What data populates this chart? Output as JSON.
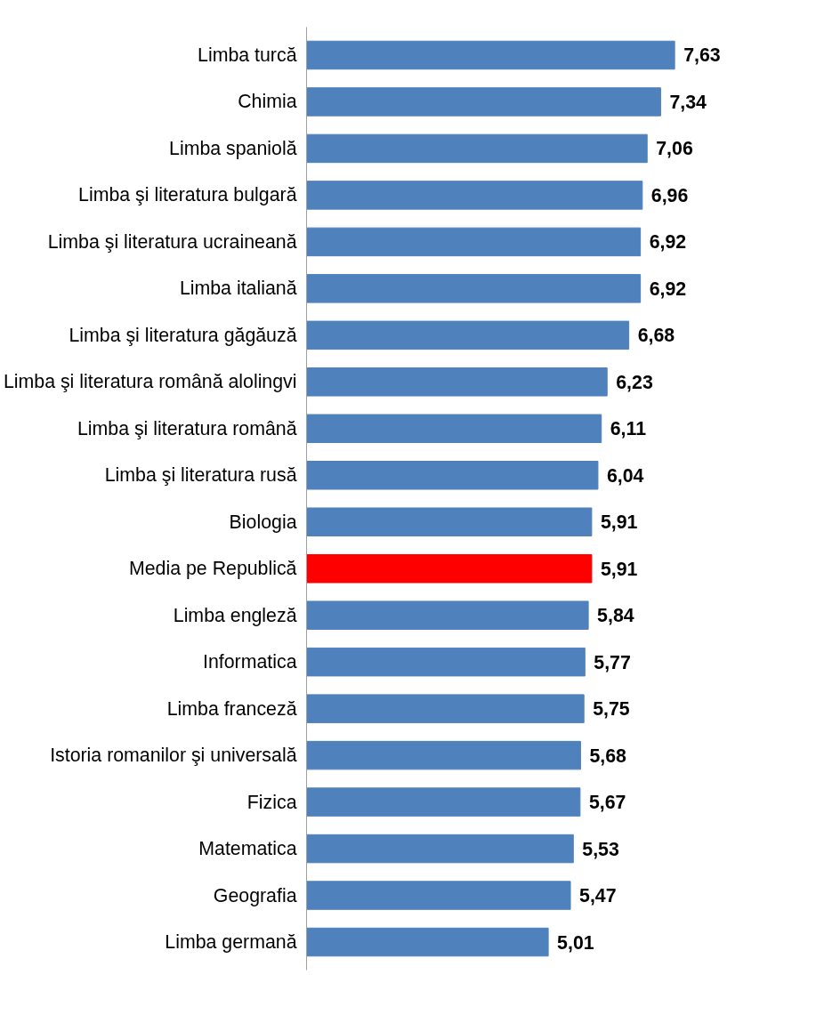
{
  "chart_data": {
    "type": "bar",
    "orientation": "horizontal",
    "categories": [
      "Limba turcă",
      "Chimia",
      "Limba spaniolă",
      "Limba şi literatura bulgară",
      "Limba şi literatura ucraineană",
      "Limba italiană",
      "Limba şi literatura găgăuză",
      "Limba şi literatura română alolingvi",
      "Limba şi literatura română",
      "Limba şi literatura rusă",
      "Biologia",
      "Media pe Republică",
      "Limba engleză",
      "Informatica",
      "Limba franceză",
      "Istoria romanilor şi universală",
      "Fizica",
      "Matematica",
      "Geografia",
      "Limba germană"
    ],
    "values": [
      7.63,
      7.34,
      7.06,
      6.96,
      6.92,
      6.92,
      6.68,
      6.23,
      6.11,
      6.04,
      5.91,
      5.91,
      5.84,
      5.77,
      5.75,
      5.68,
      5.67,
      5.53,
      5.47,
      5.01
    ],
    "value_labels": [
      "7,63",
      "7,34",
      "7,06",
      "6,96",
      "6,92",
      "6,92",
      "6,68",
      "6,23",
      "6,11",
      "6,04",
      "5,91",
      "5,91",
      "5,84",
      "5,77",
      "5,75",
      "5,68",
      "5,67",
      "5,53",
      "5,47",
      "5,01"
    ],
    "colors": [
      "#4f81bd",
      "#4f81bd",
      "#4f81bd",
      "#4f81bd",
      "#4f81bd",
      "#4f81bd",
      "#4f81bd",
      "#4f81bd",
      "#4f81bd",
      "#4f81bd",
      "#4f81bd",
      "#ff0000",
      "#4f81bd",
      "#4f81bd",
      "#4f81bd",
      "#4f81bd",
      "#4f81bd",
      "#4f81bd",
      "#4f81bd",
      "#4f81bd"
    ],
    "grid": false,
    "tick_labels": "y"
  }
}
